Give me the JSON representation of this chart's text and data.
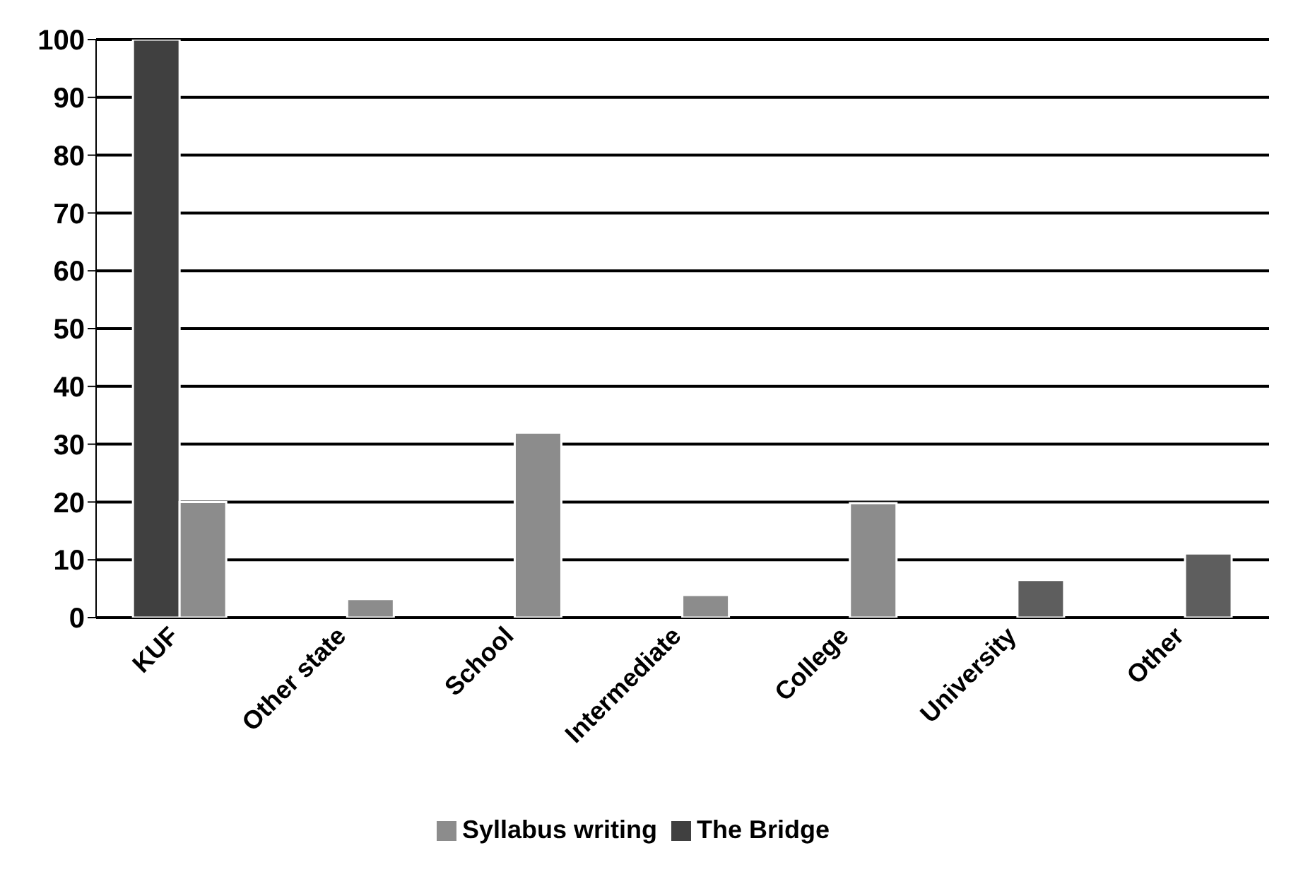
{
  "chart_data": {
    "type": "bar",
    "categories": [
      "KUF",
      "Other state",
      "School",
      "Intermediate",
      "College",
      "University",
      "Other"
    ],
    "series": [
      {
        "name": "The Bridge",
        "color": "#404040",
        "values": [
          100,
          null,
          null,
          null,
          null,
          null,
          null
        ]
      },
      {
        "name": "Syllabus writing",
        "color": "#8c8c8c",
        "colors": [
          "#8c8c8c",
          "#8c8c8c",
          "#8c8c8c",
          "#8c8c8c",
          "#8c8c8c",
          "#5e5e5e",
          "#5e5e5e"
        ],
        "values": [
          20,
          3.2,
          32,
          3.9,
          19.8,
          6.5,
          11.1
        ]
      }
    ],
    "ylim": [
      0,
      100
    ],
    "yticks": [
      0,
      10,
      20,
      30,
      40,
      50,
      60,
      70,
      80,
      90,
      100
    ],
    "grid": "y",
    "legend": "bottom"
  }
}
